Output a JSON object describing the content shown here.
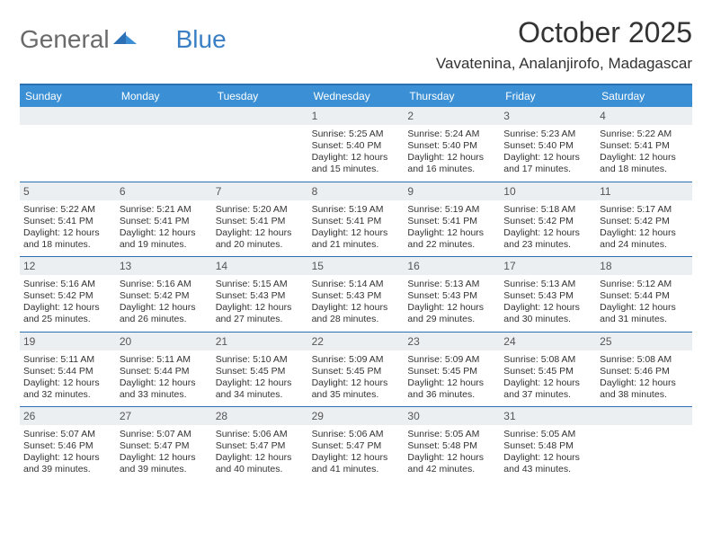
{
  "logo": {
    "text1": "General",
    "text2": "Blue"
  },
  "header": {
    "month_title": "October 2025",
    "location": "Vavatenina, Analanjirofo, Madagascar"
  },
  "colors": {
    "header_bar": "#3b8fd4",
    "rule": "#2b6fb5",
    "day_bar": "#eceff2",
    "text": "#333333",
    "logo_gray": "#6a6a6a",
    "logo_blue": "#3b7fc4"
  },
  "weekdays": [
    "Sunday",
    "Monday",
    "Tuesday",
    "Wednesday",
    "Thursday",
    "Friday",
    "Saturday"
  ],
  "weeks": [
    [
      null,
      null,
      null,
      {
        "n": "1",
        "sr": "5:25 AM",
        "ss": "5:40 PM",
        "d1": "12 hours",
        "d2": "15 minutes."
      },
      {
        "n": "2",
        "sr": "5:24 AM",
        "ss": "5:40 PM",
        "d1": "12 hours",
        "d2": "16 minutes."
      },
      {
        "n": "3",
        "sr": "5:23 AM",
        "ss": "5:40 PM",
        "d1": "12 hours",
        "d2": "17 minutes."
      },
      {
        "n": "4",
        "sr": "5:22 AM",
        "ss": "5:41 PM",
        "d1": "12 hours",
        "d2": "18 minutes."
      }
    ],
    [
      {
        "n": "5",
        "sr": "5:22 AM",
        "ss": "5:41 PM",
        "d1": "12 hours",
        "d2": "18 minutes."
      },
      {
        "n": "6",
        "sr": "5:21 AM",
        "ss": "5:41 PM",
        "d1": "12 hours",
        "d2": "19 minutes."
      },
      {
        "n": "7",
        "sr": "5:20 AM",
        "ss": "5:41 PM",
        "d1": "12 hours",
        "d2": "20 minutes."
      },
      {
        "n": "8",
        "sr": "5:19 AM",
        "ss": "5:41 PM",
        "d1": "12 hours",
        "d2": "21 minutes."
      },
      {
        "n": "9",
        "sr": "5:19 AM",
        "ss": "5:41 PM",
        "d1": "12 hours",
        "d2": "22 minutes."
      },
      {
        "n": "10",
        "sr": "5:18 AM",
        "ss": "5:42 PM",
        "d1": "12 hours",
        "d2": "23 minutes."
      },
      {
        "n": "11",
        "sr": "5:17 AM",
        "ss": "5:42 PM",
        "d1": "12 hours",
        "d2": "24 minutes."
      }
    ],
    [
      {
        "n": "12",
        "sr": "5:16 AM",
        "ss": "5:42 PM",
        "d1": "12 hours",
        "d2": "25 minutes."
      },
      {
        "n": "13",
        "sr": "5:16 AM",
        "ss": "5:42 PM",
        "d1": "12 hours",
        "d2": "26 minutes."
      },
      {
        "n": "14",
        "sr": "5:15 AM",
        "ss": "5:43 PM",
        "d1": "12 hours",
        "d2": "27 minutes."
      },
      {
        "n": "15",
        "sr": "5:14 AM",
        "ss": "5:43 PM",
        "d1": "12 hours",
        "d2": "28 minutes."
      },
      {
        "n": "16",
        "sr": "5:13 AM",
        "ss": "5:43 PM",
        "d1": "12 hours",
        "d2": "29 minutes."
      },
      {
        "n": "17",
        "sr": "5:13 AM",
        "ss": "5:43 PM",
        "d1": "12 hours",
        "d2": "30 minutes."
      },
      {
        "n": "18",
        "sr": "5:12 AM",
        "ss": "5:44 PM",
        "d1": "12 hours",
        "d2": "31 minutes."
      }
    ],
    [
      {
        "n": "19",
        "sr": "5:11 AM",
        "ss": "5:44 PM",
        "d1": "12 hours",
        "d2": "32 minutes."
      },
      {
        "n": "20",
        "sr": "5:11 AM",
        "ss": "5:44 PM",
        "d1": "12 hours",
        "d2": "33 minutes."
      },
      {
        "n": "21",
        "sr": "5:10 AM",
        "ss": "5:45 PM",
        "d1": "12 hours",
        "d2": "34 minutes."
      },
      {
        "n": "22",
        "sr": "5:09 AM",
        "ss": "5:45 PM",
        "d1": "12 hours",
        "d2": "35 minutes."
      },
      {
        "n": "23",
        "sr": "5:09 AM",
        "ss": "5:45 PM",
        "d1": "12 hours",
        "d2": "36 minutes."
      },
      {
        "n": "24",
        "sr": "5:08 AM",
        "ss": "5:45 PM",
        "d1": "12 hours",
        "d2": "37 minutes."
      },
      {
        "n": "25",
        "sr": "5:08 AM",
        "ss": "5:46 PM",
        "d1": "12 hours",
        "d2": "38 minutes."
      }
    ],
    [
      {
        "n": "26",
        "sr": "5:07 AM",
        "ss": "5:46 PM",
        "d1": "12 hours",
        "d2": "39 minutes."
      },
      {
        "n": "27",
        "sr": "5:07 AM",
        "ss": "5:47 PM",
        "d1": "12 hours",
        "d2": "39 minutes."
      },
      {
        "n": "28",
        "sr": "5:06 AM",
        "ss": "5:47 PM",
        "d1": "12 hours",
        "d2": "40 minutes."
      },
      {
        "n": "29",
        "sr": "5:06 AM",
        "ss": "5:47 PM",
        "d1": "12 hours",
        "d2": "41 minutes."
      },
      {
        "n": "30",
        "sr": "5:05 AM",
        "ss": "5:48 PM",
        "d1": "12 hours",
        "d2": "42 minutes."
      },
      {
        "n": "31",
        "sr": "5:05 AM",
        "ss": "5:48 PM",
        "d1": "12 hours",
        "d2": "43 minutes."
      },
      null
    ]
  ],
  "labels": {
    "sunrise": "Sunrise:",
    "sunset": "Sunset:",
    "daylight": "Daylight:",
    "and": "and"
  }
}
